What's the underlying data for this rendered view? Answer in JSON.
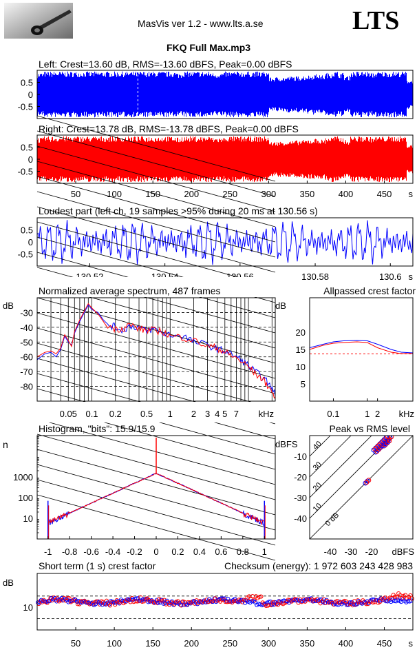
{
  "header": {
    "app_title": "MasVis ver 1.2 - www.lts.a.se",
    "brand": "LTS",
    "file_title": "FKQ Full Max.mp3"
  },
  "colors": {
    "left": "#0000ff",
    "right": "#ff0000",
    "grid": "#000000"
  },
  "chart_data": [
    {
      "id": "left-waveform",
      "type": "area",
      "title": "Left: Crest=13.60 dB, RMS=-13.60 dBFS, Peak=0.00 dBFS",
      "xlim": [
        0,
        487
      ],
      "ylim": [
        -1,
        1
      ],
      "yticks": [
        "0.5",
        "0",
        "-0.5"
      ],
      "marker_x": 130.56,
      "envelope": [
        0.9,
        0.95,
        0.95,
        0.95,
        0.95,
        0.95,
        0.95,
        0.95,
        0.95,
        0.95,
        0.95,
        0.95,
        0.95,
        0.95,
        0.95,
        0.95,
        0.95,
        0.95,
        0.95,
        0.95,
        0.95,
        0.95,
        0.9,
        0.95,
        0.95,
        0.95,
        0.95,
        0.95,
        0.9,
        0.9,
        0.95,
        0.95,
        0.95,
        0.95,
        0.95,
        0.95,
        0.95,
        0.7,
        0.72,
        0.72,
        0.75,
        0.75,
        0.78,
        0.8,
        0.85,
        0.8,
        0.9,
        0.95,
        0.9,
        0.78,
        0.95,
        0.95,
        0.95,
        0.9,
        0.95,
        0.95,
        0.95,
        0.95,
        0.95,
        0.6
      ]
    },
    {
      "id": "right-waveform",
      "type": "area",
      "title": "Right: Crest=13.78 dB, RMS=-13.78 dBFS, Peak=0.00 dBFS",
      "xlim": [
        0,
        487
      ],
      "ylim": [
        -1,
        1
      ],
      "yticks": [
        "0.5",
        "0",
        "-0.5"
      ],
      "xticks": [
        "50",
        "100",
        "150",
        "200",
        "250",
        "300",
        "350",
        "400",
        "450"
      ],
      "xunit": "s",
      "envelope": [
        0.9,
        0.95,
        0.95,
        0.95,
        0.95,
        0.95,
        0.95,
        0.95,
        0.95,
        0.95,
        0.95,
        0.95,
        0.95,
        0.95,
        0.95,
        0.95,
        0.95,
        0.95,
        0.95,
        0.95,
        0.95,
        0.95,
        0.9,
        0.95,
        0.95,
        0.95,
        0.95,
        0.95,
        0.9,
        0.9,
        0.95,
        0.95,
        0.95,
        0.95,
        0.95,
        0.95,
        0.95,
        0.72,
        0.74,
        0.75,
        0.76,
        0.78,
        0.8,
        0.82,
        0.86,
        0.82,
        0.92,
        0.95,
        0.92,
        0.8,
        0.95,
        0.95,
        0.95,
        0.92,
        0.95,
        0.95,
        0.95,
        0.95,
        0.95,
        0.6
      ]
    },
    {
      "id": "loudest-part",
      "type": "line",
      "title": "Loudest part (left  ch, 19 samples >95% during 20 ms at 130.56 s)",
      "xlim": [
        130.506,
        130.606
      ],
      "ylim": [
        -1,
        1
      ],
      "yticks": [
        "0.5",
        "0",
        "-0.5"
      ],
      "xticks": [
        130.52,
        130.54,
        130.56,
        130.58,
        130.6
      ],
      "xticklabels": [
        "130.52",
        "130.54",
        "130.56",
        "130.58",
        "130.6"
      ],
      "xunit": "s"
    },
    {
      "id": "average-spectrum",
      "type": "line",
      "title": "Normalized average spectrum, 487 frames",
      "ylabel": "dB",
      "xunit": "kHz",
      "xlim": [
        0.02,
        22
      ],
      "ylim": [
        -90,
        -20
      ],
      "yticks": [
        -30,
        -40,
        -50,
        -60,
        -70,
        -80
      ],
      "yticklabels": [
        "-30",
        "-40",
        "-50",
        "-60",
        "-70",
        "-80"
      ],
      "xticks": [
        0.05,
        0.1,
        0.2,
        0.5,
        1,
        2,
        3,
        4,
        5,
        7
      ],
      "xticklabels": [
        "0.05",
        "0.1",
        "0.2",
        "0.5",
        "1",
        "2",
        "3",
        "4",
        "5",
        "7"
      ],
      "series": [
        {
          "color": "#0000ff",
          "x": [
            0.02,
            0.025,
            0.03,
            0.035,
            0.04,
            0.045,
            0.05,
            0.055,
            0.06,
            0.07,
            0.08,
            0.09,
            0.1,
            0.12,
            0.14,
            0.16,
            0.2,
            0.25,
            0.3,
            0.4,
            0.5,
            0.6,
            0.8,
            1,
            1.5,
            2,
            3,
            4,
            5,
            6,
            8,
            10,
            12,
            15,
            18,
            22
          ],
          "y": [
            -62,
            -58,
            -57,
            -60,
            -55,
            -46,
            -50,
            -52,
            -44,
            -36,
            -30,
            -25,
            -28,
            -30,
            -35,
            -38,
            -40,
            -42,
            -39,
            -40,
            -43,
            -41,
            -44,
            -45,
            -46,
            -50,
            -52,
            -55,
            -56,
            -58,
            -62,
            -66,
            -70,
            -74,
            -78,
            -86
          ]
        },
        {
          "color": "#ff0000",
          "x": [
            0.02,
            0.025,
            0.03,
            0.035,
            0.04,
            0.045,
            0.05,
            0.055,
            0.06,
            0.07,
            0.08,
            0.09,
            0.1,
            0.12,
            0.14,
            0.16,
            0.2,
            0.25,
            0.3,
            0.4,
            0.5,
            0.6,
            0.8,
            1,
            1.5,
            2,
            3,
            4,
            5,
            6,
            8,
            10,
            12,
            15,
            18,
            22
          ],
          "y": [
            -60,
            -57,
            -56,
            -58,
            -54,
            -45,
            -49,
            -53,
            -43,
            -35,
            -29,
            -24,
            -27,
            -31,
            -36,
            -39,
            -41,
            -41,
            -38,
            -41,
            -42,
            -42,
            -43,
            -46,
            -47,
            -49,
            -53,
            -54,
            -57,
            -59,
            -63,
            -67,
            -71,
            -75,
            -80,
            -88
          ]
        }
      ]
    },
    {
      "id": "allpassed-crest",
      "type": "line",
      "title": "Allpassed crest factor",
      "ylabel": "dB",
      "xunit": "kHz",
      "xlim": [
        0.02,
        22
      ],
      "ylim": [
        0,
        30
      ],
      "yticks": [
        20,
        15,
        10,
        5
      ],
      "yticklabels": [
        "20",
        "15",
        "10",
        "5"
      ],
      "xticks": [
        0.1,
        1,
        2
      ],
      "xticklabels": [
        "0.1",
        "1",
        "2"
      ],
      "reference_db": 13.7,
      "series": [
        {
          "color": "#0000ff",
          "x": [
            0.02,
            0.05,
            0.1,
            0.2,
            0.5,
            1,
            2,
            5,
            10,
            22
          ],
          "y": [
            15.5,
            16.5,
            17.2,
            17.5,
            17.6,
            17.5,
            16.5,
            15.0,
            14.2,
            14.0
          ]
        },
        {
          "color": "#ff0000",
          "x": [
            0.02,
            0.05,
            0.1,
            0.2,
            0.5,
            1,
            2,
            5,
            10,
            22
          ],
          "y": [
            15.0,
            16.2,
            16.8,
            17.0,
            17.2,
            17.0,
            15.5,
            14.2,
            13.8,
            13.8
          ]
        }
      ]
    },
    {
      "id": "histogram",
      "type": "line",
      "title": "Histogram, \"bits\": 15.9/15.9",
      "ylabel": "n",
      "xlim": [
        -1.1,
        1.1
      ],
      "ylim": [
        1,
        100000
      ],
      "yticks": [
        1000,
        100,
        10
      ],
      "yticklabels": [
        "1000",
        "100",
        "10"
      ],
      "xticks": [
        -1,
        -0.8,
        -0.6,
        -0.4,
        -0.2,
        0,
        0.2,
        0.4,
        0.6,
        0.8,
        1
      ],
      "xticklabels": [
        "-1",
        "-0.8",
        "-0.6",
        "-0.4",
        "-0.2",
        "0",
        "0.2",
        "0.4",
        "0.6",
        "0.8",
        "1"
      ],
      "peak_center": 1500,
      "spike_center": 80000,
      "edge_spike": 70
    },
    {
      "id": "peak-vs-rms",
      "type": "scatter",
      "title": "Peak vs RMS level",
      "ylabel": "dBFS",
      "xunit": "dBFS",
      "xlim": [
        -50,
        0
      ],
      "ylim": [
        -50,
        0
      ],
      "yticks": [
        -10,
        -20,
        -30,
        -40
      ],
      "yticklabels": [
        "-10",
        "-20",
        "-30",
        "-40"
      ],
      "xticks": [
        -40,
        -30,
        -20
      ],
      "xticklabels": [
        "-40",
        "-30",
        "-20"
      ],
      "diagonal_labels": [
        "40",
        "30",
        "20",
        "10",
        "0 dB"
      ],
      "points": [
        [
          -22,
          -22
        ],
        [
          -23,
          -23
        ],
        [
          -18,
          -8
        ],
        [
          -17,
          -7
        ],
        [
          -16,
          -6
        ],
        [
          -15,
          -5
        ],
        [
          -14,
          -4
        ],
        [
          -13,
          -3
        ],
        [
          -12,
          -2
        ],
        [
          -11,
          -1
        ],
        [
          -16,
          -4
        ],
        [
          -15,
          -3
        ],
        [
          -14,
          -2
        ],
        [
          -13,
          -1
        ],
        [
          -17,
          -5
        ],
        [
          -18,
          -6
        ],
        [
          -19,
          -7
        ],
        [
          -14,
          -5
        ],
        [
          -13,
          -4
        ],
        [
          -12,
          -3
        ]
      ]
    },
    {
      "id": "short-term-crest",
      "type": "scatter",
      "title": "Short term (1 s) crest factor",
      "checksum": "Checksum (energy):  1 972 603 243 428 983",
      "ylabel": "dB",
      "xunit": "s",
      "xlim": [
        0,
        487
      ],
      "ylim": [
        0,
        25
      ],
      "yticks": [
        10
      ],
      "yticklabels": [
        "10"
      ],
      "ref_lines": [
        5,
        15
      ],
      "xticks": [
        50,
        100,
        150,
        200,
        250,
        300,
        350,
        400,
        450
      ],
      "xticklabels": [
        "50",
        "100",
        "150",
        "200",
        "250",
        "300",
        "350",
        "400",
        "450"
      ],
      "mean": 12.5
    }
  ]
}
